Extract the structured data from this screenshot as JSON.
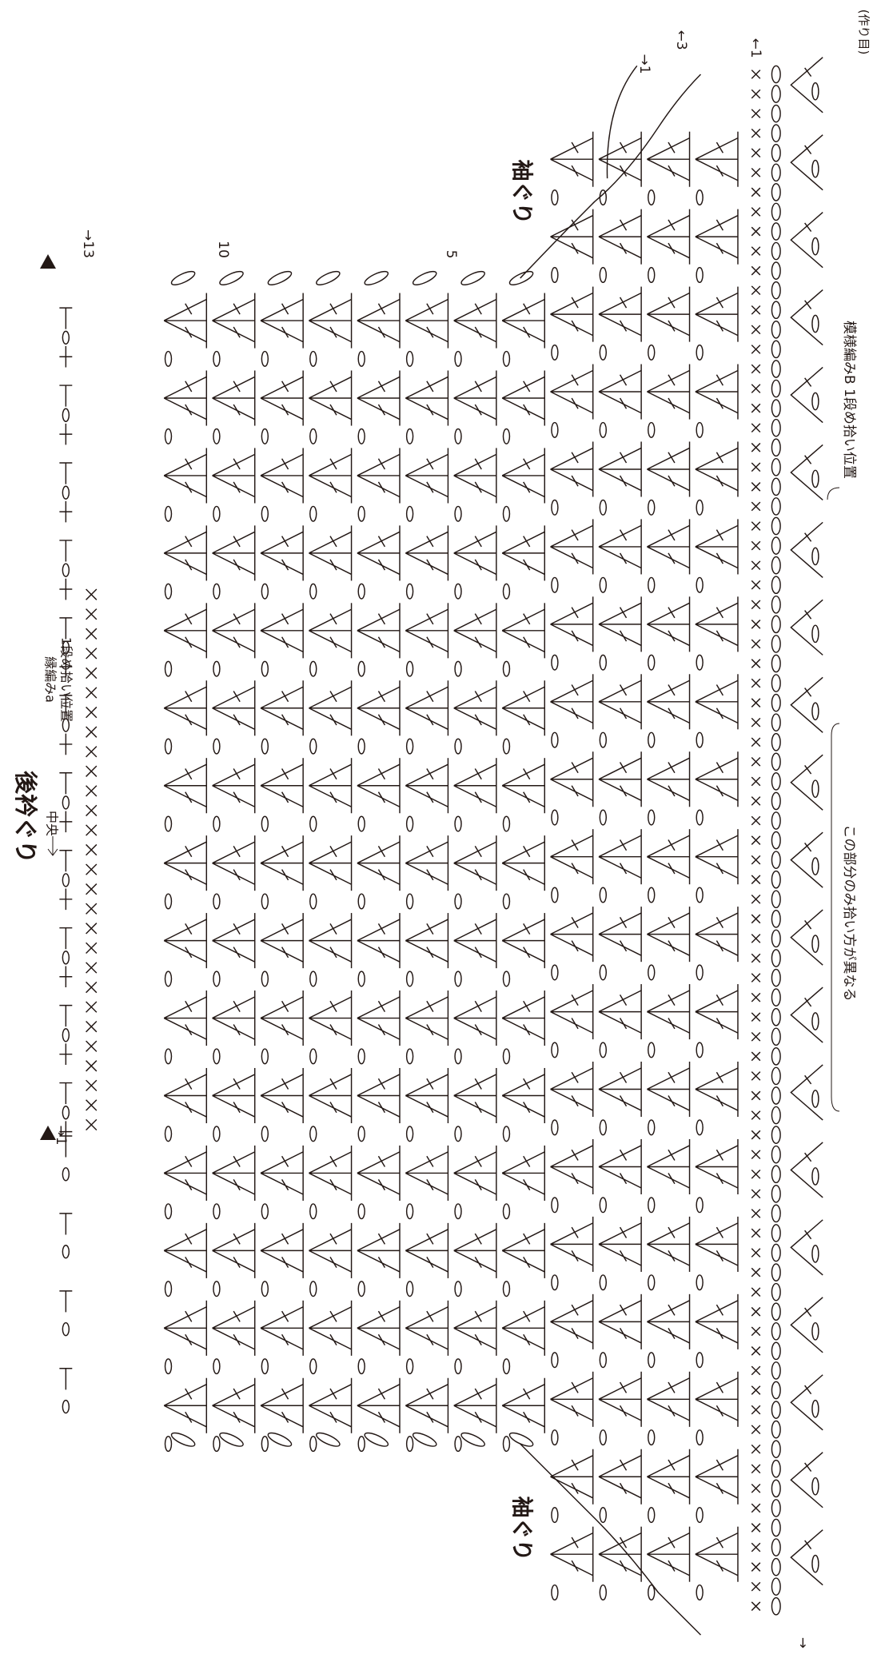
{
  "labels": {
    "back_neckline": "後衿ぐり",
    "armhole_top": "袖ぐり",
    "armhole_bottom": "袖ぐり",
    "center": "中央",
    "edging_a_line1": "縁編みa",
    "edging_a_line2": "1段め拾い位置",
    "pattern_b": "模様編みB 1段め拾い位置",
    "note": "この部分のみ拾い方が異なる",
    "foundation": "(作り目)"
  },
  "row_markers": {
    "row13": "→13",
    "row10": "10",
    "row5": "5",
    "neck_start": "→1",
    "armhole_start": "→1",
    "armhole_row3": "←3",
    "pattern_start": "←1",
    "foundation_start": "→"
  }
}
